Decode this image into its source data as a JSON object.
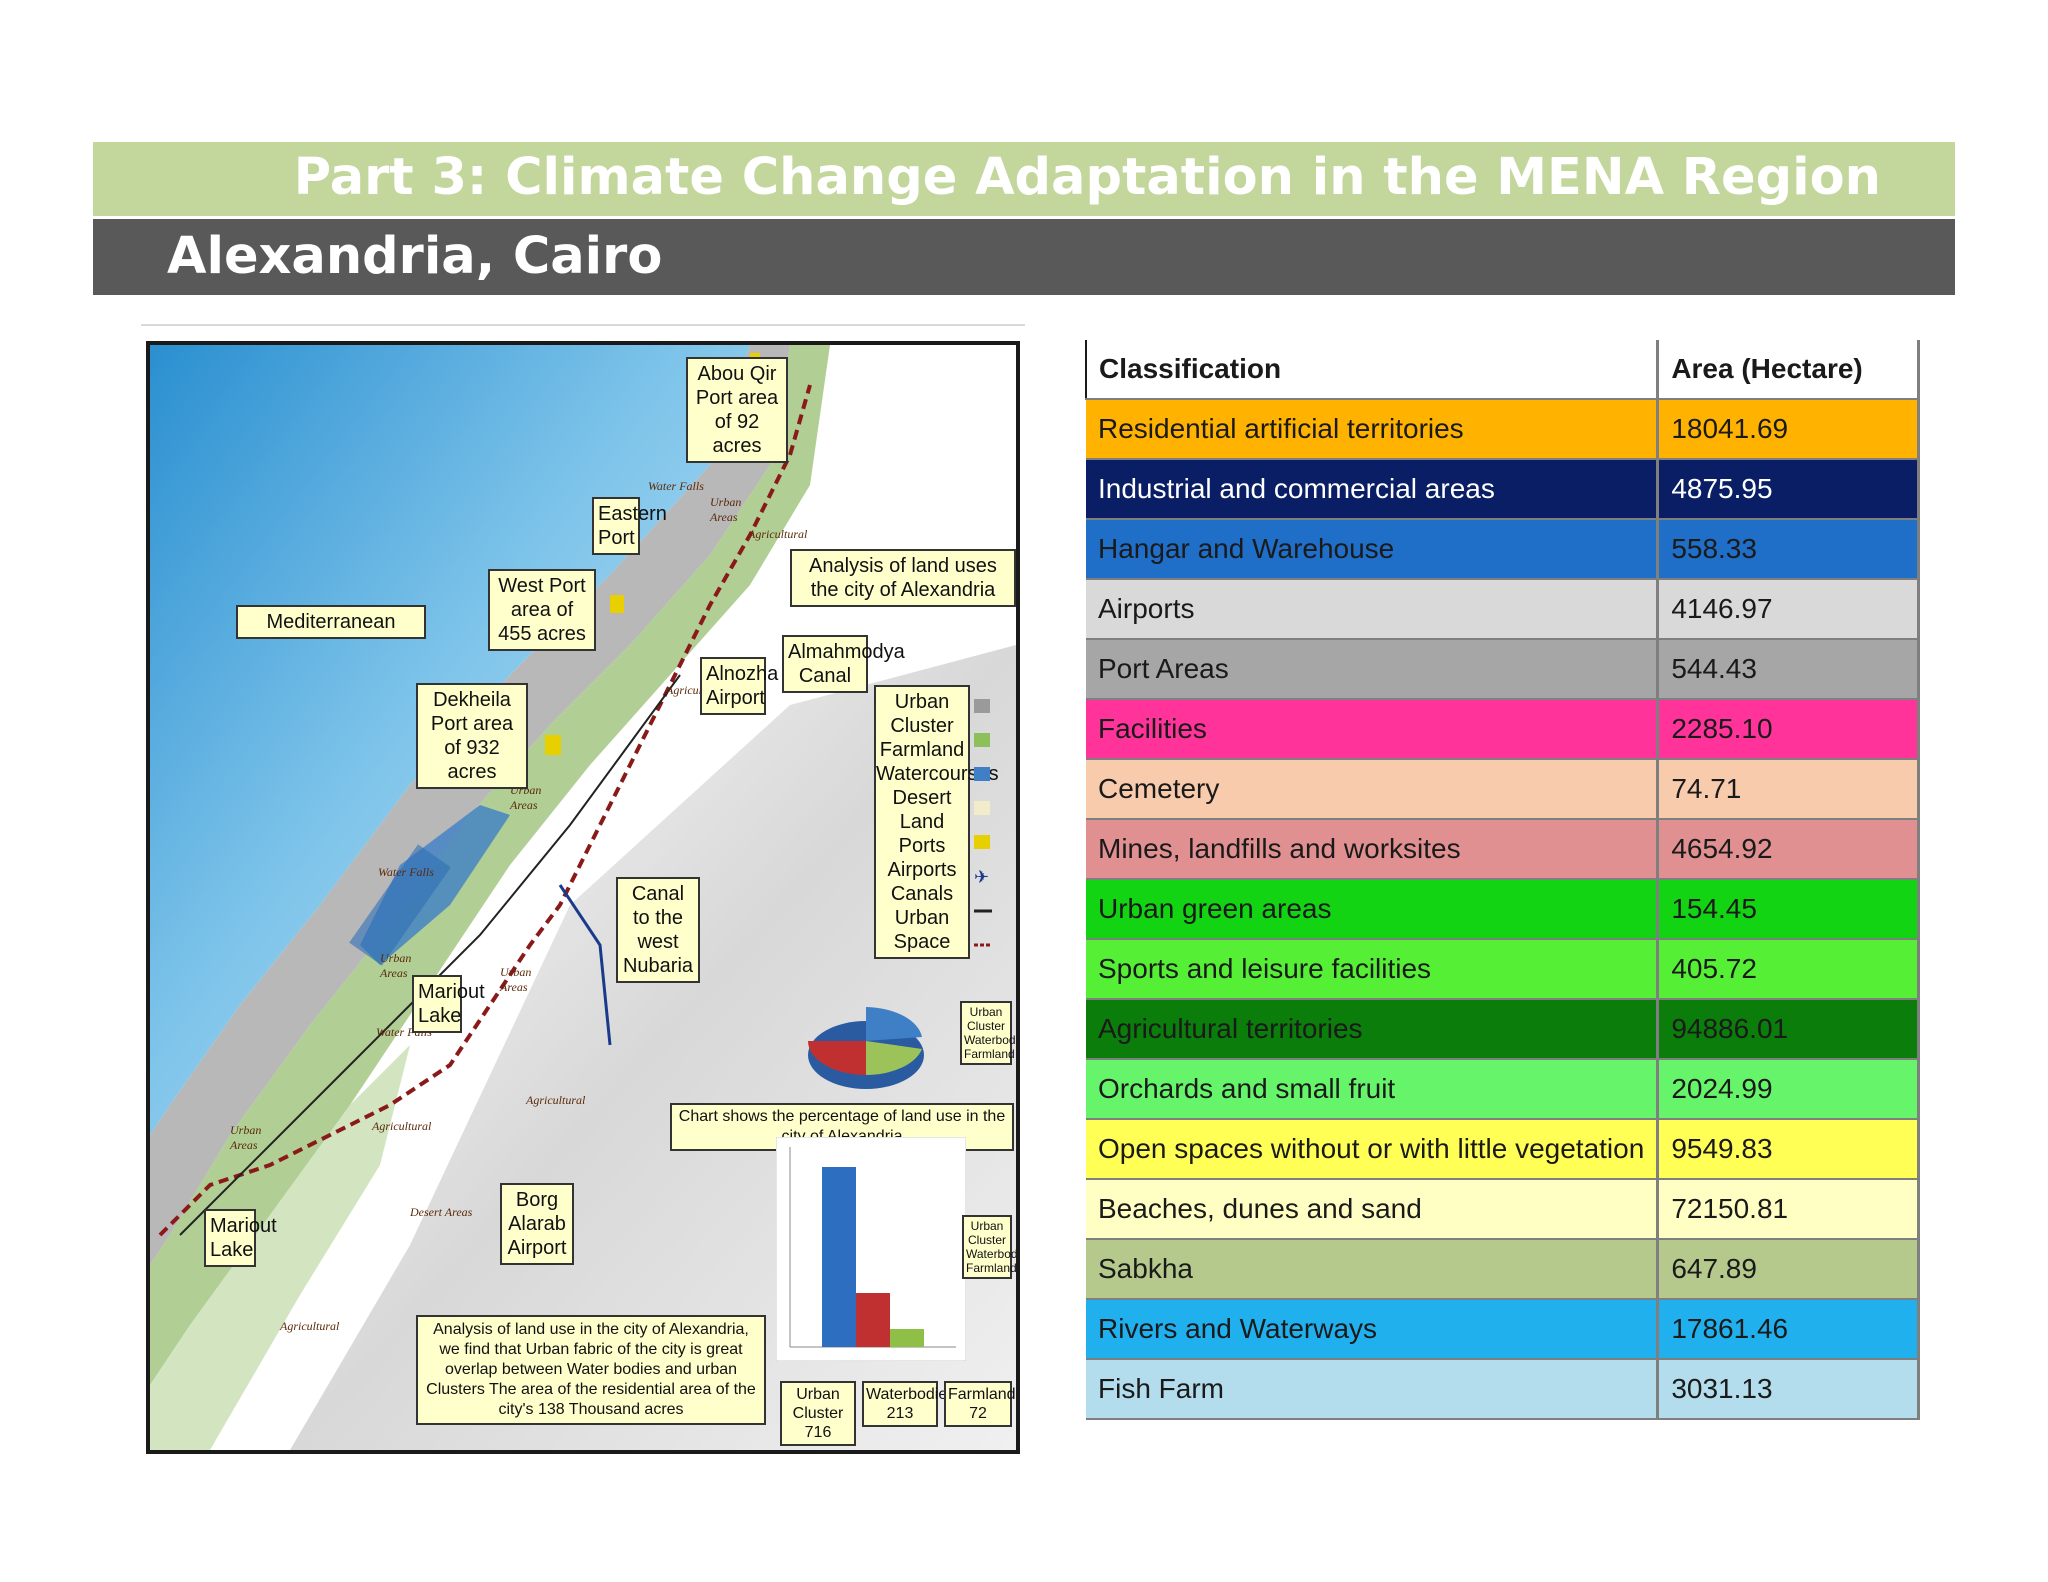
{
  "header": {
    "title": "Part 3: Climate Change Adaptation in the MENA Region",
    "subtitle": "Alexandria, Cairo"
  },
  "map": {
    "labels": {
      "abou_qir": "Abou Qir Port area of 92 acres",
      "eastern_port": "Eastern Port",
      "west_port": "West Port area of 455 acres",
      "mediterranean": "Mediterranean",
      "dekheila": "Dekheila Port area of 932 acres",
      "analysis_title": "Analysis of land uses the city of Alexandria",
      "mahmodya": "Almahmodya Canal",
      "alnozha": "Alnozha Airport",
      "canal_west": "Canal to the west Nubaria",
      "mariout_lake_1": "Mariout Lake",
      "mariout_lake_2": "Mariout Lake",
      "borg_alarab": "Borg Alarab Airport",
      "chart_caption": "Chart shows the percentage of land use in the city of Alexandria",
      "analysis_note": "Analysis of land use in the city of Alexandria, we find that Urban fabric of the city is great overlap between Water bodies and urban Clusters The area of the residential area of the city's 138 Thousand acres"
    },
    "legend": [
      "Urban Cluster",
      "Farmland",
      "Watercourses",
      "Desert Land",
      "Ports",
      "Airports",
      "Canals",
      "Urban Space"
    ],
    "legend_colors": [
      "#9a9a9a",
      "#8dbf5a",
      "#3f7fc6",
      "#f3ecc8",
      "#e8d000",
      "#1a3a8a",
      "#222222",
      "#8a1a1a"
    ],
    "pie_legend": [
      "Urban Cluster",
      "Waterbodies",
      "Farmland"
    ],
    "bar_legend": [
      "Urban Cluster",
      "Waterbodies",
      "Farmland"
    ],
    "bar_values": [
      {
        "name": "Urban Cluster",
        "value": "716"
      },
      {
        "name": "Waterbodies",
        "value": "213"
      },
      {
        "name": "Farmland",
        "value": "72"
      }
    ],
    "map_tags": [
      "Water Falls",
      "Urban Areas",
      "Agricultural",
      "Urban Areas",
      "Agricultural",
      "Water Falls",
      "Urban Areas",
      "Urban Areas",
      "Water Falls",
      "Agricultural",
      "Urban Areas",
      "Agricultural",
      "Desert Areas",
      "Agricultural"
    ]
  },
  "table": {
    "headers": [
      "Classification",
      "Area (Hectare)"
    ],
    "rows": [
      {
        "classification": "Residential artificial territories",
        "area": "18041.69",
        "bg": "#ffb200",
        "fg": "#1a1a1a"
      },
      {
        "classification": "Industrial and commercial areas",
        "area": "4875.95",
        "bg": "#0a1e66",
        "fg": "#ffffff"
      },
      {
        "classification": "Hangar and Warehouse",
        "area": "558.33",
        "bg": "#1f6ec8",
        "fg": "#1a1a1a"
      },
      {
        "classification": "Airports",
        "area": "4146.97",
        "bg": "#d9d9d9",
        "fg": "#1a1a1a"
      },
      {
        "classification": "Port Areas",
        "area": "544.43",
        "bg": "#a6a6a6",
        "fg": "#1a1a1a"
      },
      {
        "classification": "Facilities",
        "area": "2285.10",
        "bg": "#ff3399",
        "fg": "#1a1a1a"
      },
      {
        "classification": "Cemetery",
        "area": "74.71",
        "bg": "#f8cbad",
        "fg": "#1a1a1a"
      },
      {
        "classification": "Mines, landfills and worksites",
        "area": "4654.92",
        "bg": "#e09090",
        "fg": "#1a1a1a"
      },
      {
        "classification": "Urban green areas",
        "area": "154.45",
        "bg": "#12d412",
        "fg": "#1a1a1a"
      },
      {
        "classification": "Sports and leisure facilities",
        "area": "405.72",
        "bg": "#55f035",
        "fg": "#1a1a1a"
      },
      {
        "classification": "Agricultural territories",
        "area": "94886.01",
        "bg": "#0a7d0a",
        "fg": "#1a1a1a"
      },
      {
        "classification": "Orchards and small fruit",
        "area": "2024.99",
        "bg": "#66f56a",
        "fg": "#1a1a1a"
      },
      {
        "classification": "Open spaces without or with little vegetation",
        "area": "9549.83",
        "bg": "#ffff55",
        "fg": "#1a1a1a"
      },
      {
        "classification": "Beaches, dunes and sand",
        "area": "72150.81",
        "bg": "#ffffc4",
        "fg": "#1a1a1a"
      },
      {
        "classification": "Sabkha",
        "area": "647.89",
        "bg": "#b5c98c",
        "fg": "#1a1a1a"
      },
      {
        "classification": "Rivers and Waterways",
        "area": "17861.46",
        "bg": "#20b0ee",
        "fg": "#1a1a1a"
      },
      {
        "classification": "Fish Farm",
        "area": "3031.13",
        "bg": "#b3dcec",
        "fg": "#1a1a1a"
      }
    ]
  }
}
